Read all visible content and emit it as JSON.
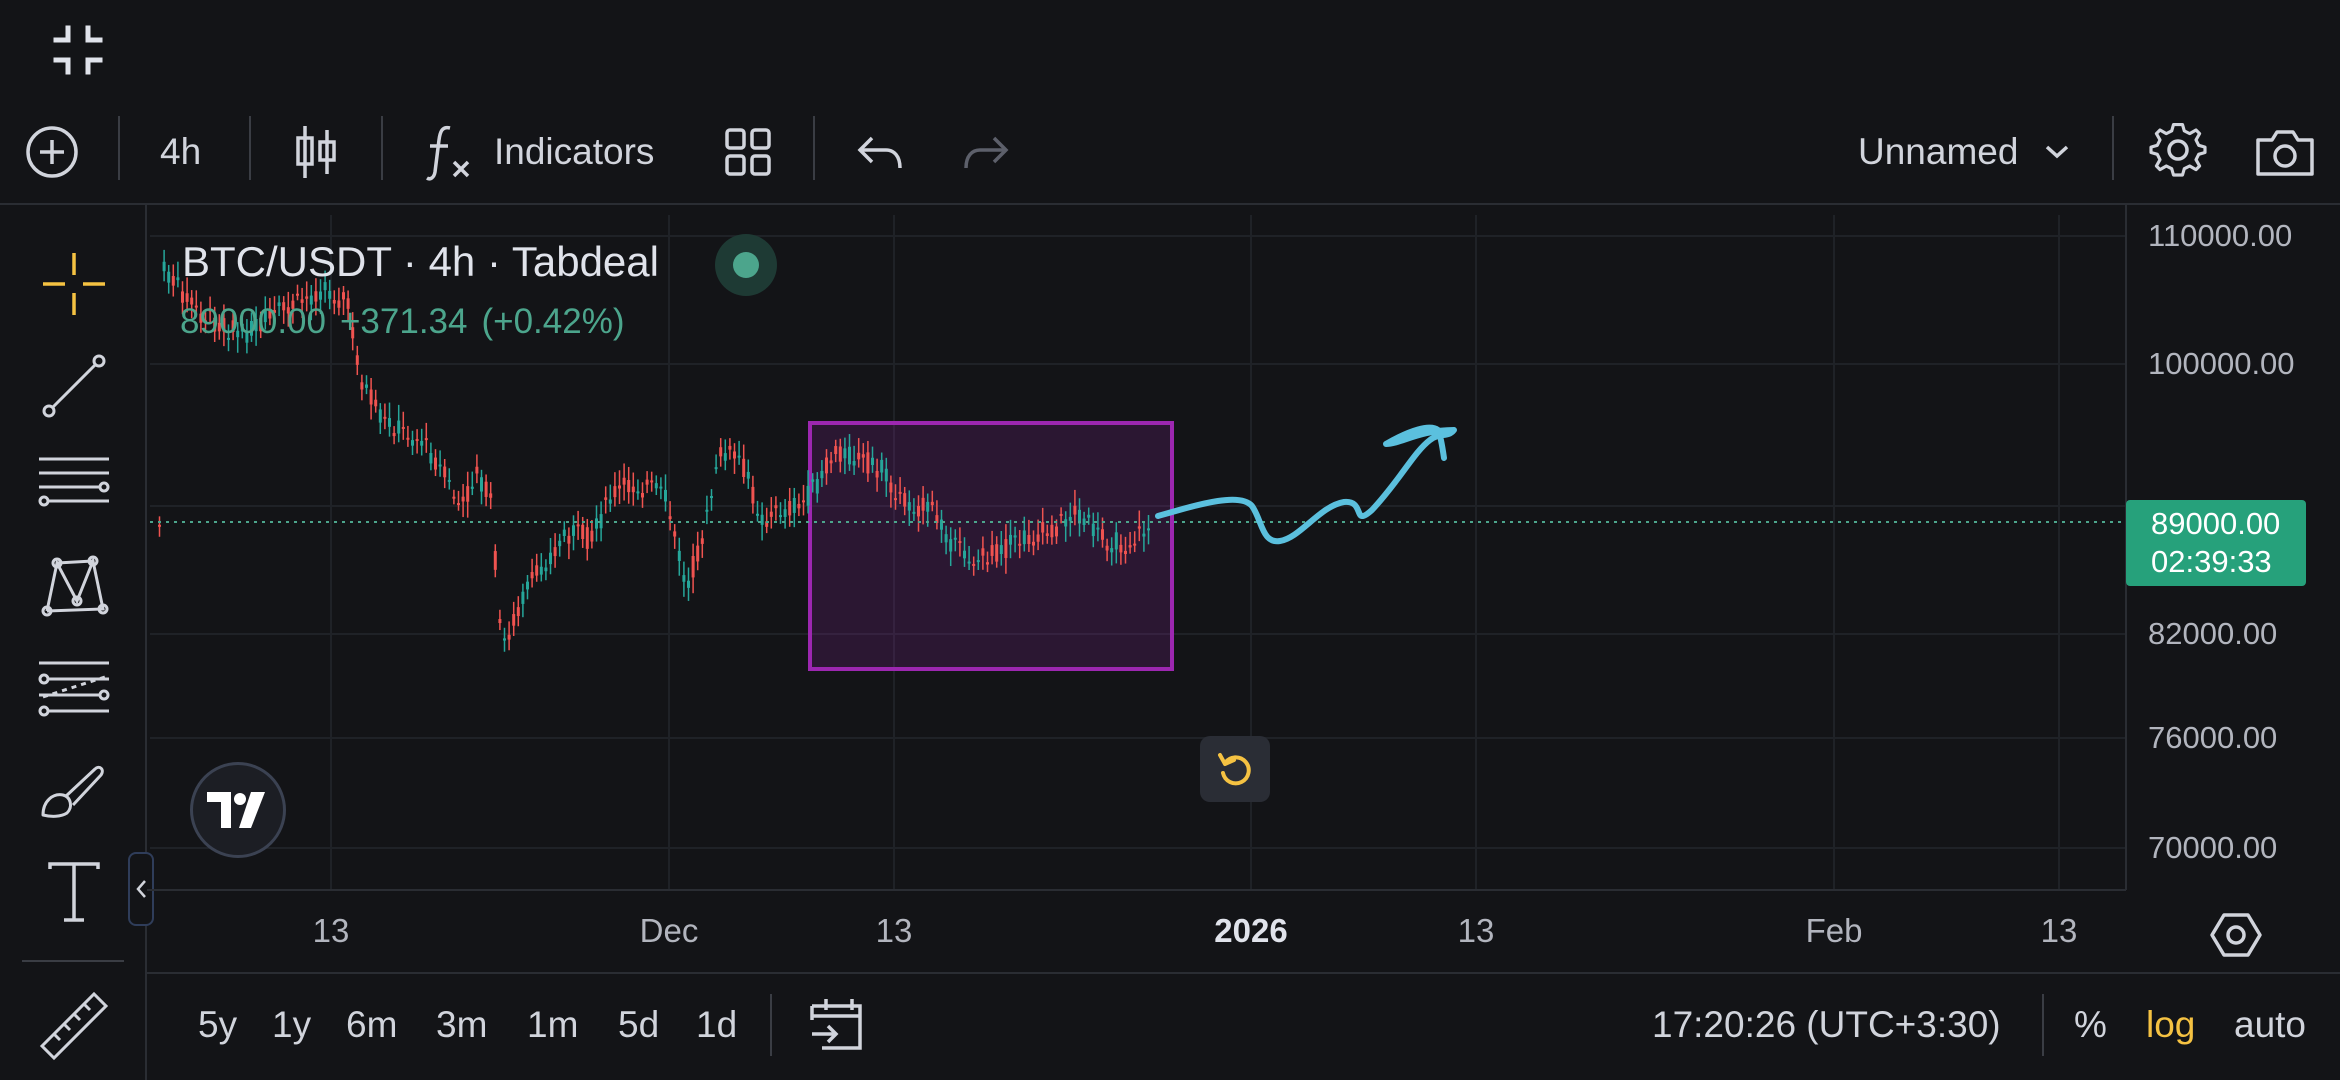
{
  "toolbar": {
    "interval": "4h",
    "indicators_label": "Indicators",
    "layout_name": "Unnamed"
  },
  "legend": {
    "title": "BTC/USDT · 4h · Tabdeal",
    "last_price": "89000.00",
    "change": "+371.34",
    "change_pct": "(+0.42%)"
  },
  "price_axis": [
    "110000.00",
    "100000.00",
    "82000.00",
    "76000.00",
    "70000.00"
  ],
  "price_badge": {
    "price": "89000.00",
    "countdown": "02:39:33"
  },
  "time_axis": [
    "13",
    "Dec",
    "13",
    "2026",
    "13",
    "Feb",
    "13"
  ],
  "bottom": {
    "ranges": [
      "5y",
      "1y",
      "6m",
      "3m",
      "1m",
      "5d",
      "1d"
    ],
    "clock": "17:20:26 (UTC+3:30)",
    "percent": "%",
    "log": "log",
    "auto": "auto"
  },
  "colors": {
    "up": "#26a69a",
    "down": "#ef5350",
    "box": "#9c27b0",
    "brush": "#5bc0de",
    "accent": "#f5c242",
    "badge": "#26a17b"
  },
  "icons": {
    "fullscreen": "exit-fullscreen-icon",
    "add": "add-symbol-icon",
    "chart_type": "candles-icon",
    "indicators": "fx-icon",
    "templates": "grid-icon",
    "undo": "undo-icon",
    "redo": "redo-icon",
    "settings": "gear-icon",
    "snapshot": "camera-icon"
  }
}
